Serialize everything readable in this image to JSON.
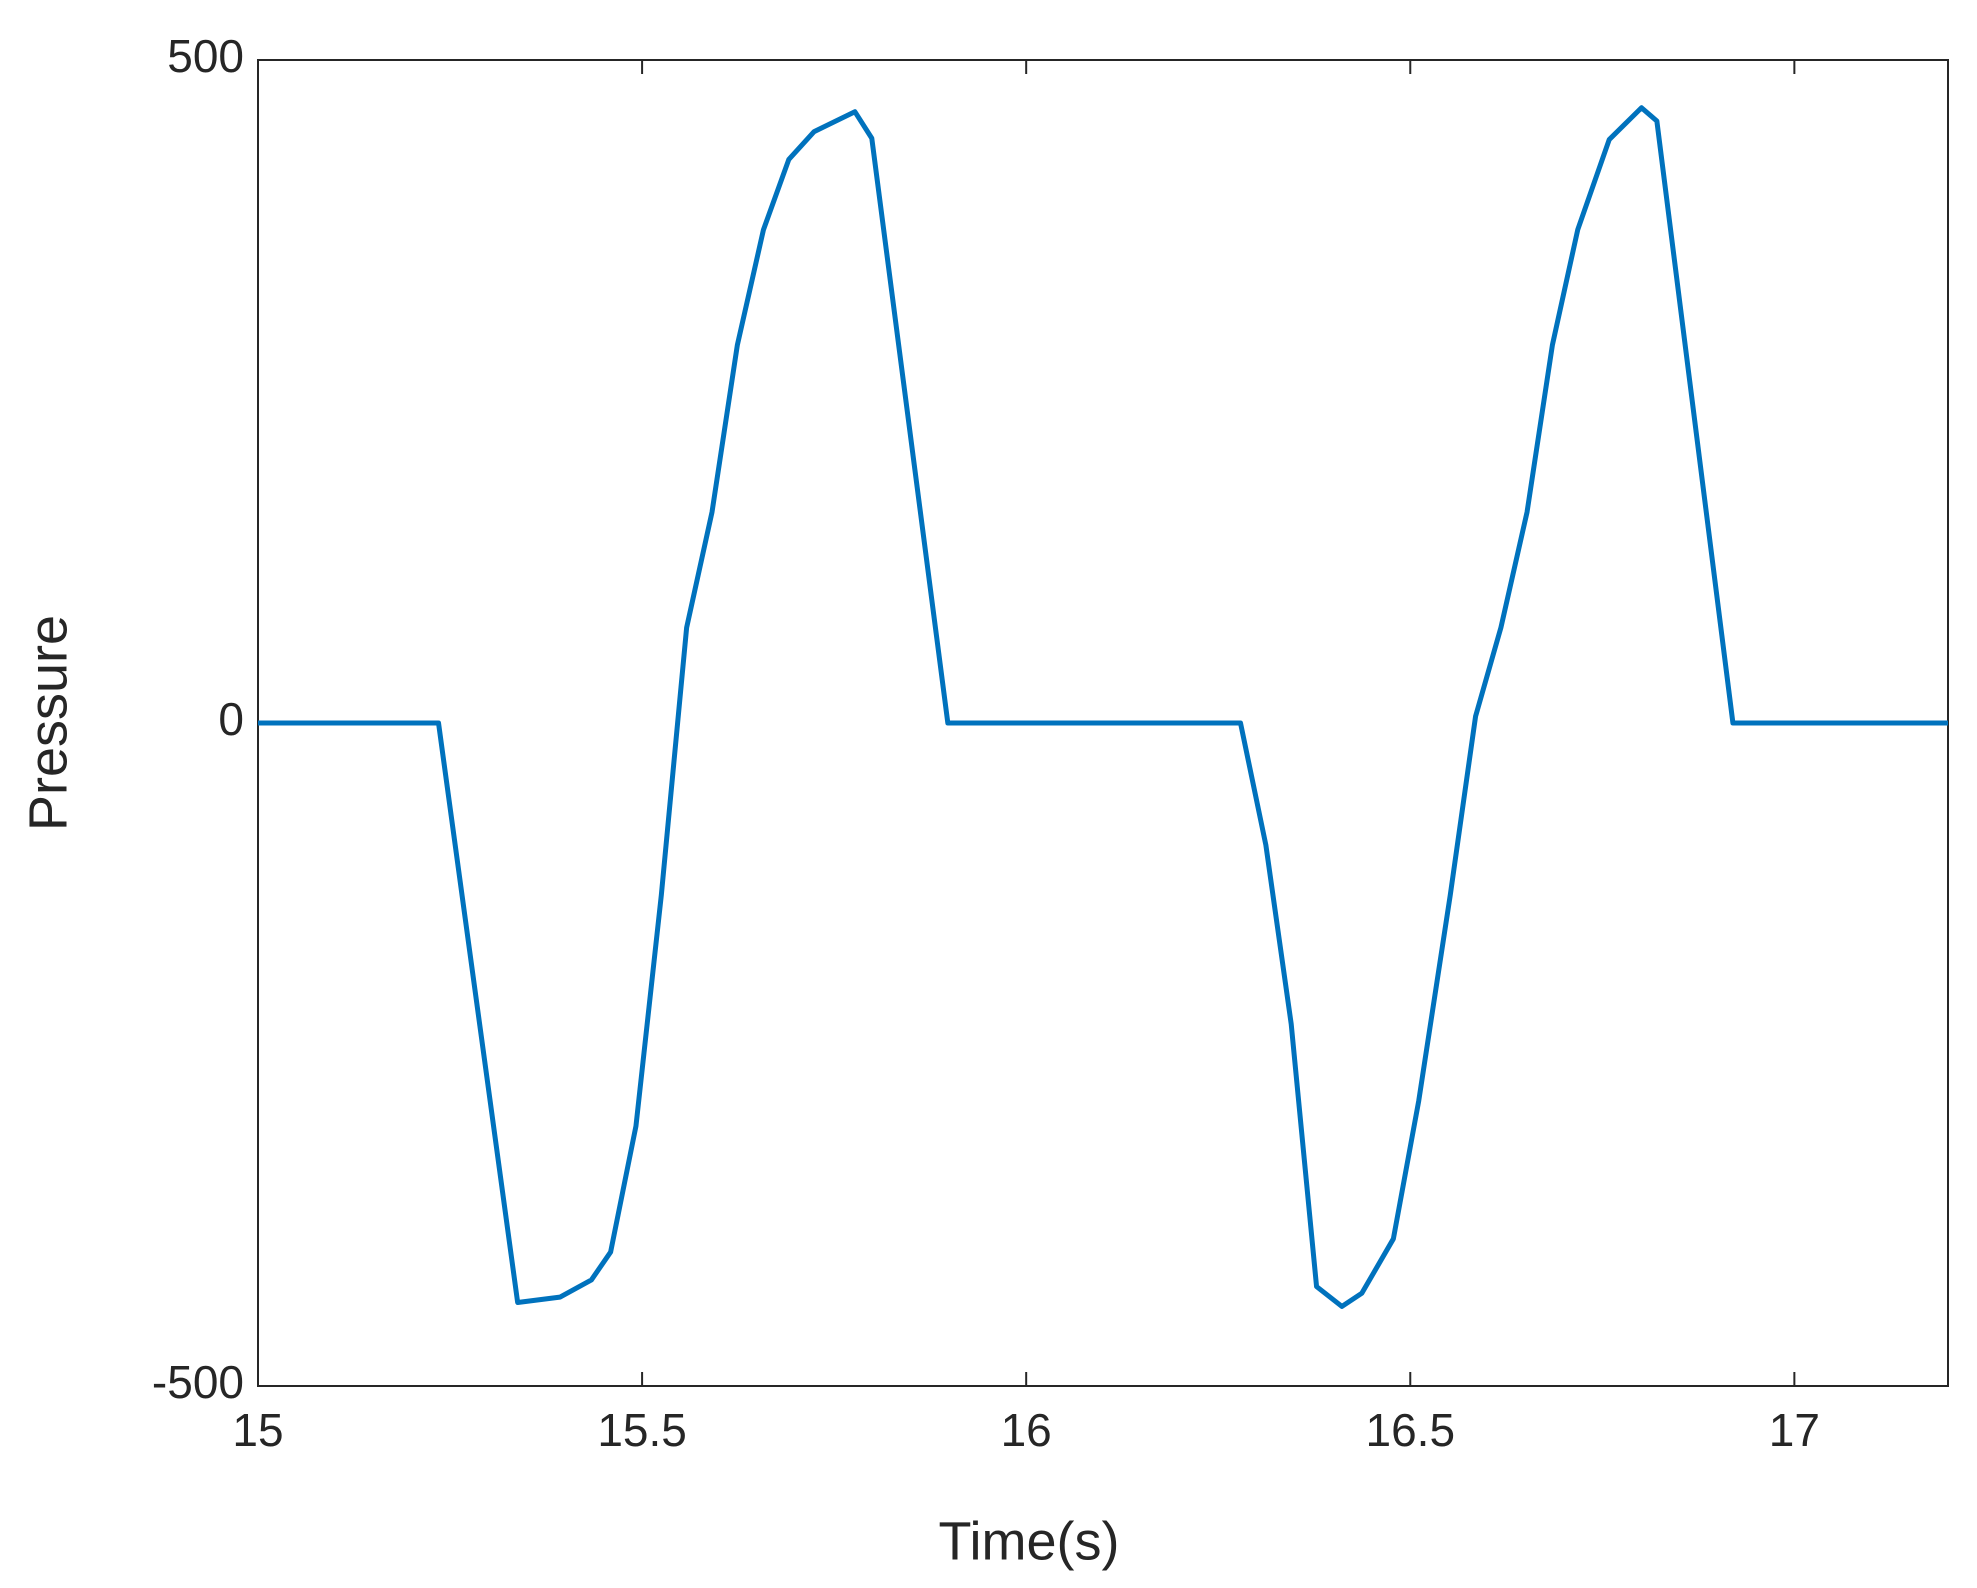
{
  "chart_data": {
    "type": "line",
    "xlabel": "Time(s)",
    "ylabel": "Pressure",
    "x": [
      15,
      15.235,
      15.338,
      15.393,
      15.434,
      15.459,
      15.492,
      15.525,
      15.558,
      15.591,
      15.624,
      15.658,
      15.691,
      15.724,
      15.777,
      15.799,
      15.898,
      16.279,
      16.312,
      16.345,
      16.378,
      16.411,
      16.437,
      16.478,
      16.511,
      16.552,
      16.585,
      16.618,
      16.652,
      16.685,
      16.718,
      16.759,
      16.801,
      16.821,
      16.92,
      17.2
    ],
    "series": [
      {
        "color": "#0072bd",
        "values": [
          0,
          0,
          -437,
          -433,
          -420,
          -399,
          -304,
          -130,
          72,
          159,
          285,
          372,
          425,
          446,
          461,
          441,
          0,
          0,
          -92,
          -227,
          -425,
          -440,
          -430,
          -389,
          -285,
          -130,
          5,
          72,
          159,
          285,
          372,
          440,
          464,
          454,
          0,
          0
        ]
      }
    ],
    "xlim": [
      15,
      17.2
    ],
    "xticks": [
      15,
      15.5,
      16,
      16.5,
      17
    ],
    "ylim": [
      -500,
      500
    ],
    "yticks": [
      -500,
      0,
      500
    ]
  }
}
